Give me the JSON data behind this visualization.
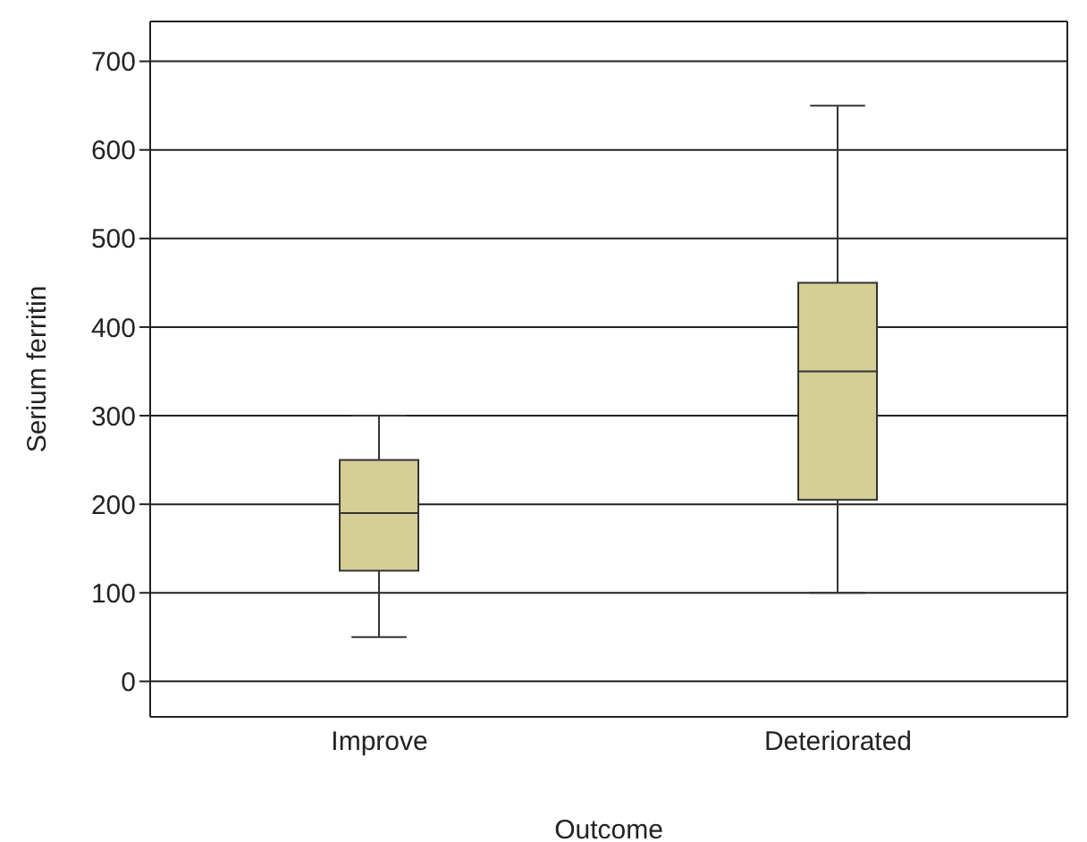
{
  "chart_data": {
    "type": "box",
    "xlabel": "Outcome",
    "ylabel": "Serium ferritin",
    "categories": [
      "Improve",
      "Deteriorated"
    ],
    "boxes": [
      {
        "low": 50,
        "q1": 125,
        "median": 190,
        "q3": 250,
        "high": 300
      },
      {
        "low": 100,
        "q1": 205,
        "median": 350,
        "q3": 450,
        "high": 650
      }
    ],
    "color": "#d5cf96",
    "ylim": [
      -40,
      745
    ],
    "yticks": [
      0,
      100,
      200,
      300,
      400,
      500,
      600,
      700
    ],
    "grid": "y"
  }
}
